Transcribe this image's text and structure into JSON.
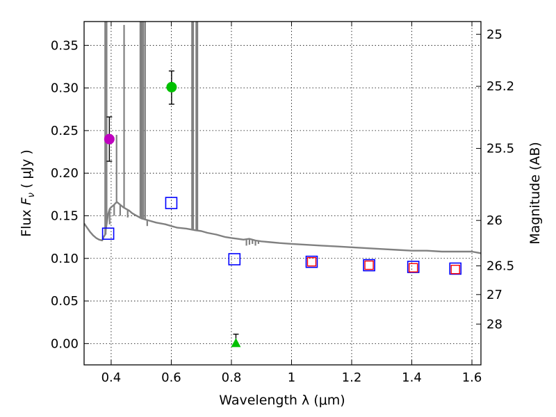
{
  "chart_data": {
    "type": "scatter",
    "title": "",
    "xlabel": "Wavelength  λ (μm)",
    "ylabel": "Flux  F_ν  ( μJy )",
    "ylabel_parts": {
      "prefix": "Flux  ",
      "symbol": "F",
      "subscript": "ν",
      "suffix": "  ( μJy )"
    },
    "y2label": "Magnitude (AB)",
    "xlim": [
      0.31,
      1.63
    ],
    "ylim": [
      -0.025,
      0.378
    ],
    "grid": true,
    "x_ticks": [
      {
        "value": 0.4,
        "label": "0.4"
      },
      {
        "value": 0.6,
        "label": "0.6"
      },
      {
        "value": 0.8,
        "label": "0.8"
      },
      {
        "value": 1.0,
        "label": "1"
      },
      {
        "value": 1.2,
        "label": "1.2"
      },
      {
        "value": 1.4,
        "label": "1.4"
      },
      {
        "value": 1.6,
        "label": "1.6"
      }
    ],
    "y_ticks": [
      {
        "value": 0.0,
        "label": "0.00"
      },
      {
        "value": 0.05,
        "label": "0.05"
      },
      {
        "value": 0.1,
        "label": "0.10"
      },
      {
        "value": 0.15,
        "label": "0.15"
      },
      {
        "value": 0.2,
        "label": "0.20"
      },
      {
        "value": 0.25,
        "label": "0.25"
      },
      {
        "value": 0.3,
        "label": "0.30"
      },
      {
        "value": 0.35,
        "label": "0.35"
      }
    ],
    "mag_ticks": [
      {
        "value": 25,
        "label": "25"
      },
      {
        "value": 25.2,
        "label": "25.2"
      },
      {
        "value": 25.5,
        "label": "25.5"
      },
      {
        "value": 26,
        "label": "26"
      },
      {
        "value": 26.5,
        "label": "26.5"
      },
      {
        "value": 27,
        "label": "27"
      },
      {
        "value": 28,
        "label": "28"
      }
    ],
    "model_spectrum": {
      "name": "model SED",
      "color": "#808080",
      "points": [
        [
          0.31,
          0.141
        ],
        [
          0.32,
          0.136
        ],
        [
          0.33,
          0.131
        ],
        [
          0.34,
          0.127
        ],
        [
          0.35,
          0.124
        ],
        [
          0.36,
          0.122
        ],
        [
          0.37,
          0.121
        ],
        [
          0.375,
          0.125
        ],
        [
          0.38,
          0.128
        ],
        [
          0.385,
          0.14
        ],
        [
          0.39,
          0.152
        ],
        [
          0.395,
          0.158
        ],
        [
          0.4,
          0.16
        ],
        [
          0.41,
          0.163
        ],
        [
          0.415,
          0.165
        ],
        [
          0.42,
          0.166
        ],
        [
          0.43,
          0.163
        ],
        [
          0.44,
          0.16
        ],
        [
          0.45,
          0.158
        ],
        [
          0.46,
          0.156
        ],
        [
          0.47,
          0.153
        ],
        [
          0.48,
          0.151
        ],
        [
          0.49,
          0.149
        ],
        [
          0.5,
          0.147
        ],
        [
          0.52,
          0.145
        ],
        [
          0.55,
          0.142
        ],
        [
          0.58,
          0.14
        ],
        [
          0.6,
          0.138
        ],
        [
          0.62,
          0.136
        ],
        [
          0.65,
          0.135
        ],
        [
          0.68,
          0.133
        ],
        [
          0.7,
          0.132
        ],
        [
          0.72,
          0.13
        ],
        [
          0.75,
          0.128
        ],
        [
          0.78,
          0.125
        ],
        [
          0.8,
          0.124
        ],
        [
          0.82,
          0.123
        ],
        [
          0.84,
          0.122
        ],
        [
          0.86,
          0.123
        ],
        [
          0.88,
          0.121
        ],
        [
          0.9,
          0.12
        ],
        [
          0.93,
          0.119
        ],
        [
          0.96,
          0.118
        ],
        [
          1.0,
          0.117
        ],
        [
          1.05,
          0.116
        ],
        [
          1.1,
          0.115
        ],
        [
          1.15,
          0.114
        ],
        [
          1.2,
          0.113
        ],
        [
          1.25,
          0.112
        ],
        [
          1.3,
          0.111
        ],
        [
          1.35,
          0.11
        ],
        [
          1.4,
          0.109
        ],
        [
          1.45,
          0.109
        ],
        [
          1.5,
          0.108
        ],
        [
          1.55,
          0.108
        ],
        [
          1.6,
          0.108
        ],
        [
          1.63,
          0.106
        ]
      ],
      "spikes": [
        {
          "x": 0.38,
          "top": 0.378
        },
        {
          "x": 0.385,
          "top": 0.378
        },
        {
          "x": 0.418,
          "top": 0.245
        },
        {
          "x": 0.443,
          "top": 0.374
        },
        {
          "x": 0.497,
          "top": 0.378
        },
        {
          "x": 0.502,
          "top": 0.378
        },
        {
          "x": 0.507,
          "top": 0.378
        },
        {
          "x": 0.513,
          "top": 0.378
        },
        {
          "x": 0.669,
          "top": 0.378
        },
        {
          "x": 0.673,
          "top": 0.378
        },
        {
          "x": 0.683,
          "top": 0.378
        },
        {
          "x": 0.687,
          "top": 0.378
        }
      ],
      "absorption": [
        {
          "x": 0.382,
          "bottom": 0.128
        },
        {
          "x": 0.395,
          "bottom": 0.14
        },
        {
          "x": 0.41,
          "bottom": 0.15
        },
        {
          "x": 0.43,
          "bottom": 0.15
        },
        {
          "x": 0.455,
          "bottom": 0.148
        },
        {
          "x": 0.52,
          "bottom": 0.138
        },
        {
          "x": 0.85,
          "bottom": 0.115
        },
        {
          "x": 0.86,
          "bottom": 0.116
        },
        {
          "x": 0.87,
          "bottom": 0.117
        },
        {
          "x": 0.88,
          "bottom": 0.115
        },
        {
          "x": 0.89,
          "bottom": 0.117
        }
      ]
    },
    "observed": [
      {
        "name": "magenta detection",
        "x": 0.394,
        "y": 0.24,
        "yerr_low": 0.214,
        "yerr_high": 0.266,
        "marker": "circle",
        "color": "#bf00bf"
      },
      {
        "name": "green detection",
        "x": 0.601,
        "y": 0.301,
        "yerr_low": 0.281,
        "yerr_high": 0.32,
        "marker": "circle",
        "color": "#00c000"
      },
      {
        "name": "upper limit",
        "x": 0.815,
        "y": 0.0,
        "yerr_low": 0.0,
        "yerr_high": 0.011,
        "marker": "triangle",
        "color": "#00c000"
      }
    ],
    "model_bands_blue": {
      "color": "#0000ff",
      "points": [
        [
          0.39,
          0.129
        ],
        [
          0.6,
          0.165
        ],
        [
          0.81,
          0.099
        ],
        [
          1.067,
          0.096
        ],
        [
          1.258,
          0.092
        ],
        [
          1.405,
          0.09
        ],
        [
          1.545,
          0.088
        ]
      ]
    },
    "model_bands_red": {
      "color": "#ff0000",
      "points": [
        [
          1.067,
          0.096
        ],
        [
          1.258,
          0.092
        ],
        [
          1.405,
          0.089
        ],
        [
          1.545,
          0.087
        ]
      ]
    }
  }
}
